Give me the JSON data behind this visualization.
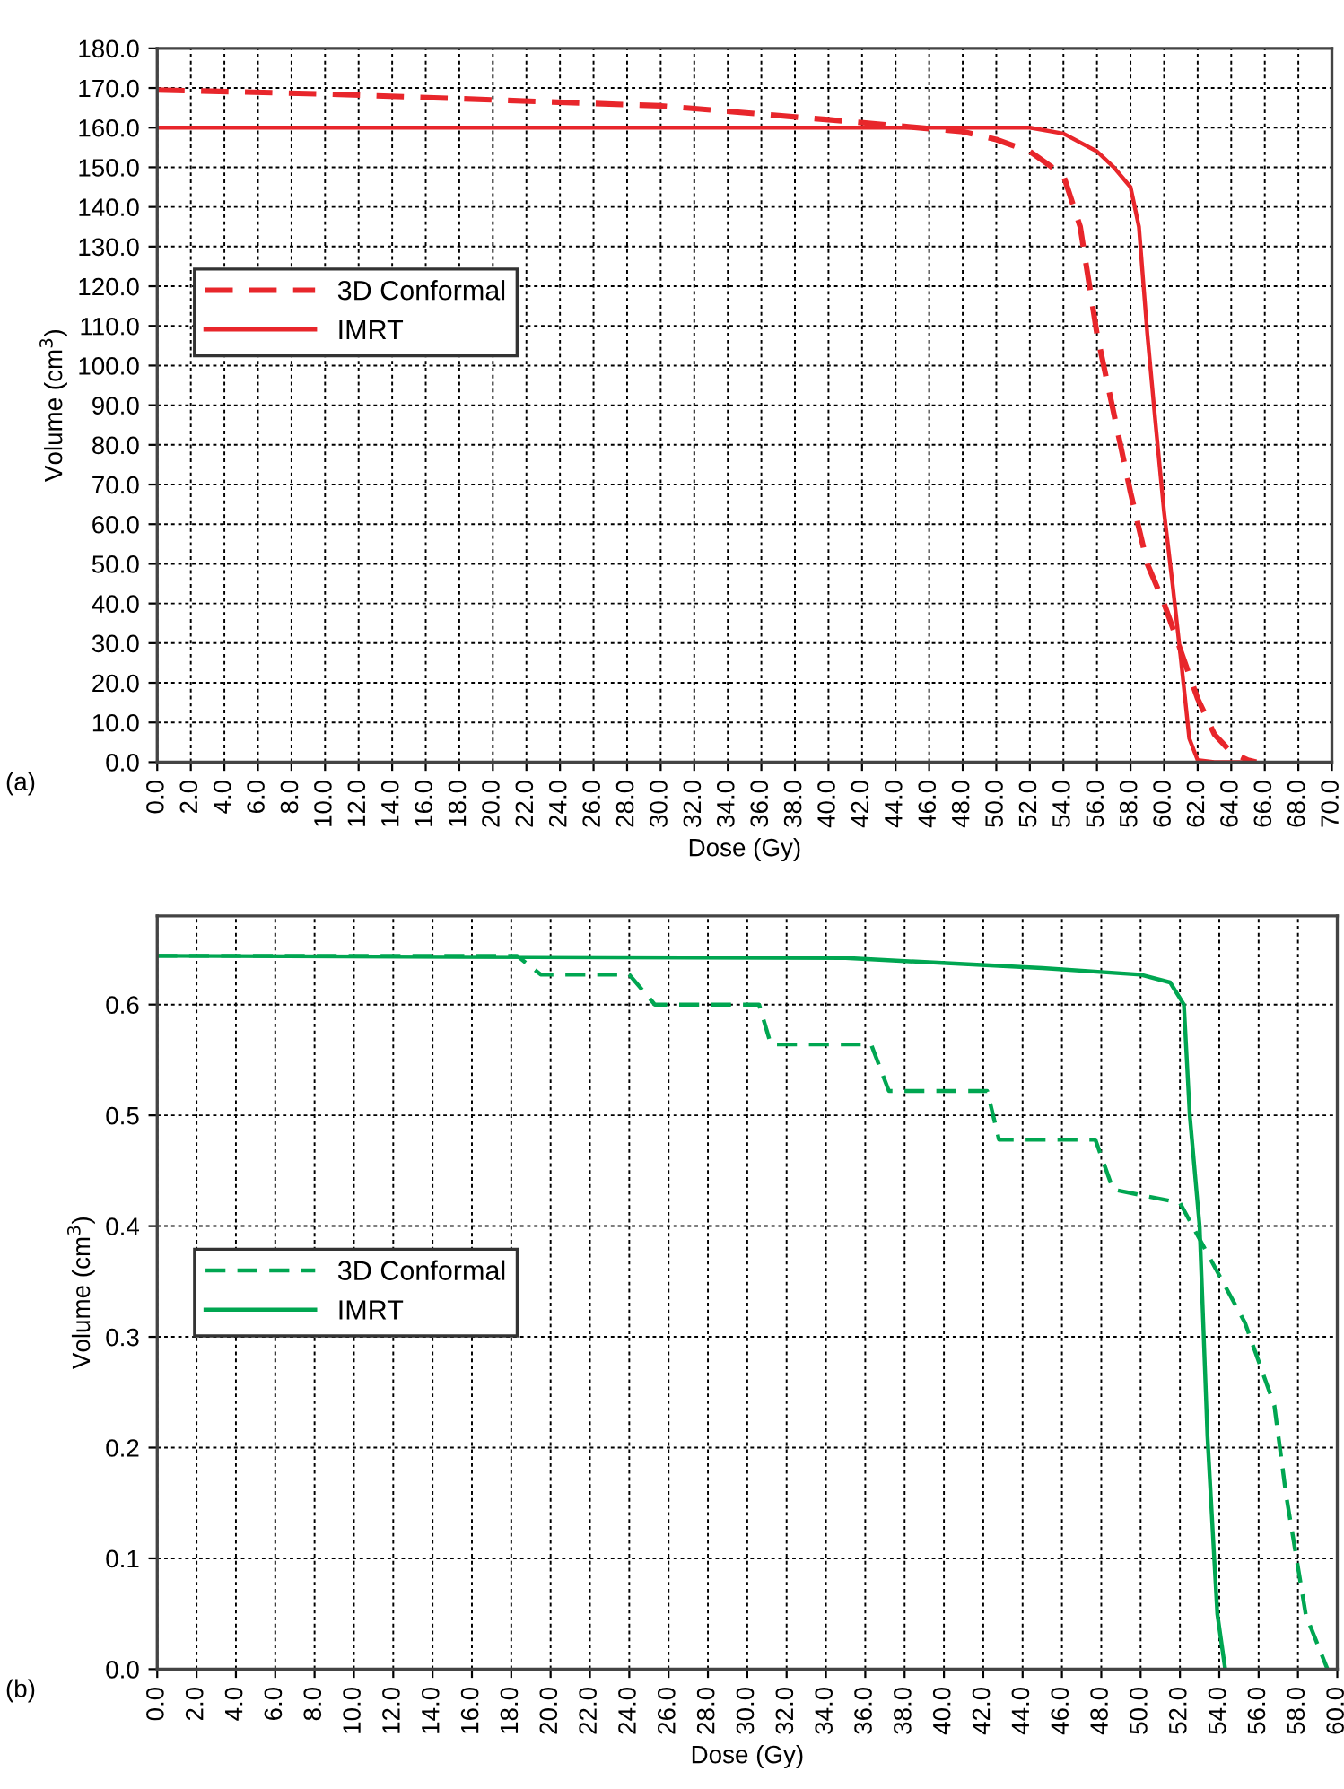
{
  "chart_data": [
    {
      "type": "line",
      "xlabel": "Dose (Gy)",
      "ylabel": "Volume (cm$^{3}$)",
      "annotations": [
        "(a)"
      ],
      "xlim": [
        0,
        70
      ],
      "ylim": [
        0,
        180
      ],
      "xticks": [
        {
          "value": 0,
          "label": "0.0"
        },
        {
          "value": 2,
          "label": "2.0"
        },
        {
          "value": 4,
          "label": "4.0"
        },
        {
          "value": 6,
          "label": "6.0"
        },
        {
          "value": 8,
          "label": "8.0"
        },
        {
          "value": 10,
          "label": "10.0"
        },
        {
          "value": 12,
          "label": "12.0"
        },
        {
          "value": 14,
          "label": "14.0"
        },
        {
          "value": 16,
          "label": "16.0"
        },
        {
          "value": 18,
          "label": "18.0"
        },
        {
          "value": 20,
          "label": "20.0"
        },
        {
          "value": 22,
          "label": "22.0"
        },
        {
          "value": 24,
          "label": "24.0"
        },
        {
          "value": 26,
          "label": "26.0"
        },
        {
          "value": 28,
          "label": "28.0"
        },
        {
          "value": 30,
          "label": "30.0"
        },
        {
          "value": 32,
          "label": "32.0"
        },
        {
          "value": 34,
          "label": "34.0"
        },
        {
          "value": 36,
          "label": "36.0"
        },
        {
          "value": 38,
          "label": "38.0"
        },
        {
          "value": 40,
          "label": "40.0"
        },
        {
          "value": 42,
          "label": "42.0"
        },
        {
          "value": 44,
          "label": "44.0"
        },
        {
          "value": 46,
          "label": "46.0"
        },
        {
          "value": 48,
          "label": "48.0"
        },
        {
          "value": 50,
          "label": "50.0"
        },
        {
          "value": 52,
          "label": "52.0"
        },
        {
          "value": 54,
          "label": "54.0"
        },
        {
          "value": 56,
          "label": "56.0"
        },
        {
          "value": 58,
          "label": "58.0"
        },
        {
          "value": 60,
          "label": "60.0"
        },
        {
          "value": 62,
          "label": "62.0"
        },
        {
          "value": 64,
          "label": "64.0"
        },
        {
          "value": 66,
          "label": "66.0"
        },
        {
          "value": 68,
          "label": "68.0"
        },
        {
          "value": 70,
          "label": "70.0"
        }
      ],
      "yticks": [
        {
          "value": 0,
          "label": "0.0"
        },
        {
          "value": 10,
          "label": "10.0"
        },
        {
          "value": 20,
          "label": "20.0"
        },
        {
          "value": 30,
          "label": "30.0"
        },
        {
          "value": 40,
          "label": "40.0"
        },
        {
          "value": 50,
          "label": "50.0"
        },
        {
          "value": 60,
          "label": "60.0"
        },
        {
          "value": 70,
          "label": "70.0"
        },
        {
          "value": 80,
          "label": "80.0"
        },
        {
          "value": 90,
          "label": "90.0"
        },
        {
          "value": 100,
          "label": "100.0"
        },
        {
          "value": 110,
          "label": "110.0"
        },
        {
          "value": 120,
          "label": "120.0"
        },
        {
          "value": 130,
          "label": "130.0"
        },
        {
          "value": 140,
          "label": "140.0"
        },
        {
          "value": 150,
          "label": "150.0"
        },
        {
          "value": 160,
          "label": "160.0"
        },
        {
          "value": 170,
          "label": "170.0"
        },
        {
          "value": 180,
          "label": "180.0"
        }
      ],
      "grid": true,
      "legend": "center left",
      "marker": "none",
      "series": [
        {
          "name": "3D Conformal",
          "color": "#e8262b",
          "line_style": "dashed",
          "x": [
            0,
            10,
            20,
            30,
            40,
            44,
            48,
            50,
            52,
            54,
            55,
            56,
            57,
            58,
            59,
            60,
            61,
            62,
            63,
            64,
            65,
            65.5
          ],
          "values": [
            169.5,
            168.5,
            167,
            165.5,
            162,
            160.5,
            159,
            157,
            154,
            148,
            135,
            108,
            88,
            68,
            50,
            40,
            28,
            16,
            7,
            2.5,
            0.5,
            0
          ]
        },
        {
          "name": "IMRT",
          "color": "#e8262b",
          "line_style": "solid",
          "x": [
            0,
            52,
            54,
            56,
            57,
            58,
            58.5,
            59,
            59.5,
            60,
            60.5,
            61,
            61.5,
            62,
            63,
            65
          ],
          "values": [
            160,
            160,
            158.5,
            154,
            150,
            145,
            135,
            108,
            85,
            63,
            45,
            26,
            6,
            0.5,
            0,
            0
          ]
        }
      ]
    },
    {
      "type": "line",
      "xlabel": "Dose (Gy)",
      "ylabel": "Volume (cm$^{3}$)",
      "annotations": [
        "(b)"
      ],
      "xlim": [
        0,
        60
      ],
      "ylim": [
        0,
        0.68
      ],
      "xticks": [
        {
          "value": 0,
          "label": "0.0"
        },
        {
          "value": 2,
          "label": "2.0"
        },
        {
          "value": 4,
          "label": "4.0"
        },
        {
          "value": 6,
          "label": "6.0"
        },
        {
          "value": 8,
          "label": "8.0"
        },
        {
          "value": 10,
          "label": "10.0"
        },
        {
          "value": 12,
          "label": "12.0"
        },
        {
          "value": 14,
          "label": "14.0"
        },
        {
          "value": 16,
          "label": "16.0"
        },
        {
          "value": 18,
          "label": "18.0"
        },
        {
          "value": 20,
          "label": "20.0"
        },
        {
          "value": 22,
          "label": "22.0"
        },
        {
          "value": 24,
          "label": "24.0"
        },
        {
          "value": 26,
          "label": "26.0"
        },
        {
          "value": 28,
          "label": "28.0"
        },
        {
          "value": 30,
          "label": "30.0"
        },
        {
          "value": 32,
          "label": "32.0"
        },
        {
          "value": 34,
          "label": "34.0"
        },
        {
          "value": 36,
          "label": "36.0"
        },
        {
          "value": 38,
          "label": "38.0"
        },
        {
          "value": 40,
          "label": "40.0"
        },
        {
          "value": 42,
          "label": "42.0"
        },
        {
          "value": 44,
          "label": "44.0"
        },
        {
          "value": 46,
          "label": "46.0"
        },
        {
          "value": 48,
          "label": "48.0"
        },
        {
          "value": 50,
          "label": "50.0"
        },
        {
          "value": 52,
          "label": "52.0"
        },
        {
          "value": 54,
          "label": "54.0"
        },
        {
          "value": 56,
          "label": "56.0"
        },
        {
          "value": 58,
          "label": "58.0"
        },
        {
          "value": 60,
          "label": "60.0"
        }
      ],
      "yticks": [
        {
          "value": 0,
          "label": "0.0"
        },
        {
          "value": 0.1,
          "label": "0.1"
        },
        {
          "value": 0.2,
          "label": "0.2"
        },
        {
          "value": 0.3,
          "label": "0.3"
        },
        {
          "value": 0.4,
          "label": "0.4"
        },
        {
          "value": 0.5,
          "label": "0.5"
        },
        {
          "value": 0.6,
          "label": "0.6"
        }
      ],
      "grid": true,
      "legend": "center left",
      "marker": "none",
      "series": [
        {
          "name": "3D Conformal",
          "color": "#00a651",
          "line_style": "dashed",
          "x": [
            0,
            18.3,
            19.5,
            24,
            25.3,
            30.6,
            31.2,
            36.3,
            37.2,
            42.2,
            42.8,
            47.7,
            48.6,
            52,
            55.3,
            56.8,
            57.4,
            58.4,
            59.5
          ],
          "values": [
            0.644,
            0.644,
            0.627,
            0.627,
            0.6,
            0.6,
            0.564,
            0.564,
            0.522,
            0.522,
            0.478,
            0.478,
            0.433,
            0.421,
            0.313,
            0.238,
            0.157,
            0.049,
            0
          ]
        },
        {
          "name": "IMRT",
          "color": "#00a651",
          "line_style": "solid",
          "x": [
            0,
            35,
            45,
            50,
            51.5,
            52.2,
            52.5,
            53,
            53.4,
            53.9,
            54.3
          ],
          "values": [
            0.644,
            0.642,
            0.633,
            0.627,
            0.62,
            0.6,
            0.5,
            0.4,
            0.21,
            0.05,
            0
          ]
        }
      ]
    }
  ]
}
